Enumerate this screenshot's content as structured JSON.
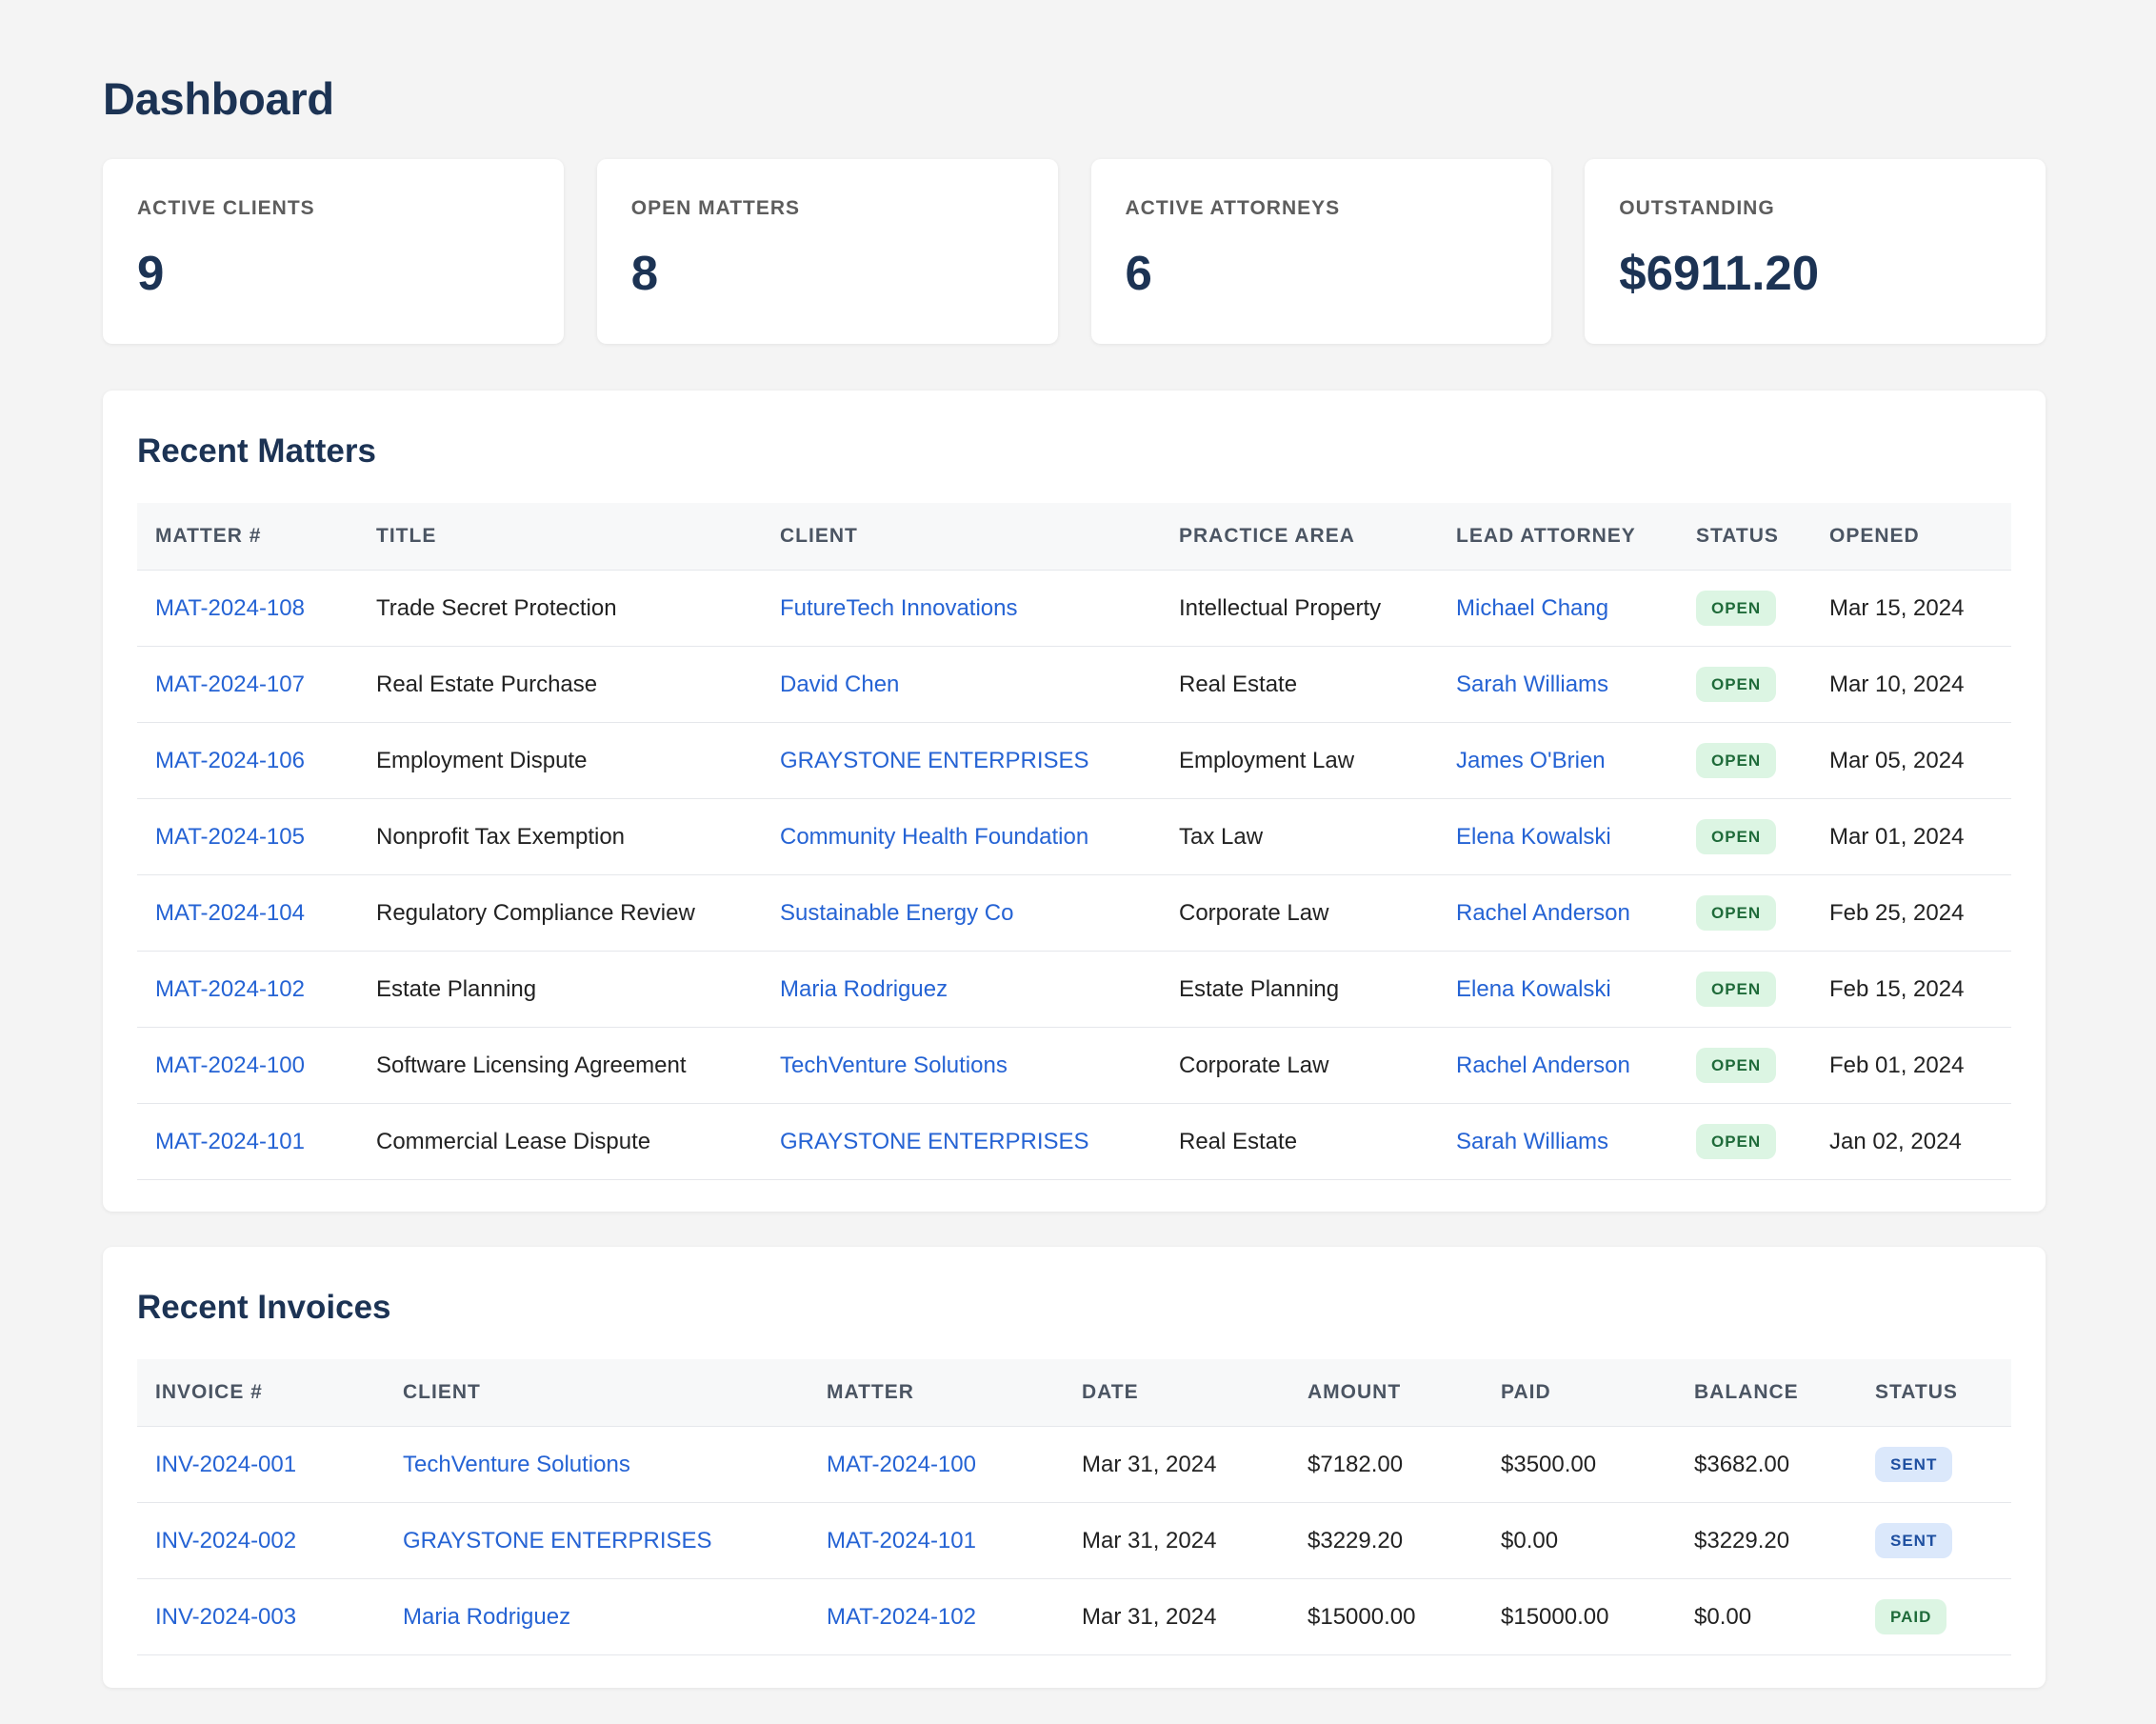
{
  "page": {
    "title": "Dashboard"
  },
  "stats": [
    {
      "label": "ACTIVE CLIENTS",
      "value": "9"
    },
    {
      "label": "OPEN MATTERS",
      "value": "8"
    },
    {
      "label": "ACTIVE ATTORNEYS",
      "value": "6"
    },
    {
      "label": "OUTSTANDING",
      "value": "$6911.20"
    }
  ],
  "matters": {
    "title": "Recent Matters",
    "columns": [
      "MATTER #",
      "TITLE",
      "CLIENT",
      "PRACTICE AREA",
      "LEAD ATTORNEY",
      "STATUS",
      "OPENED"
    ],
    "rows": [
      {
        "matter": "MAT-2024-108",
        "title": "Trade Secret Protection",
        "client": "FutureTech Innovations",
        "area": "Intellectual Property",
        "attorney": "Michael Chang",
        "status": "OPEN",
        "opened": "Mar 15, 2024"
      },
      {
        "matter": "MAT-2024-107",
        "title": "Real Estate Purchase",
        "client": "David Chen",
        "area": "Real Estate",
        "attorney": "Sarah Williams",
        "status": "OPEN",
        "opened": "Mar 10, 2024"
      },
      {
        "matter": "MAT-2024-106",
        "title": "Employment Dispute",
        "client": "GRAYSTONE ENTERPRISES",
        "area": "Employment Law",
        "attorney": "James O'Brien",
        "status": "OPEN",
        "opened": "Mar 05, 2024"
      },
      {
        "matter": "MAT-2024-105",
        "title": "Nonprofit Tax Exemption",
        "client": "Community Health Foundation",
        "area": "Tax Law",
        "attorney": "Elena Kowalski",
        "status": "OPEN",
        "opened": "Mar 01, 2024"
      },
      {
        "matter": "MAT-2024-104",
        "title": "Regulatory Compliance Review",
        "client": "Sustainable Energy Co",
        "area": "Corporate Law",
        "attorney": "Rachel Anderson",
        "status": "OPEN",
        "opened": "Feb 25, 2024"
      },
      {
        "matter": "MAT-2024-102",
        "title": "Estate Planning",
        "client": "Maria Rodriguez",
        "area": "Estate Planning",
        "attorney": "Elena Kowalski",
        "status": "OPEN",
        "opened": "Feb 15, 2024"
      },
      {
        "matter": "MAT-2024-100",
        "title": "Software Licensing Agreement",
        "client": "TechVenture Solutions",
        "area": "Corporate Law",
        "attorney": "Rachel Anderson",
        "status": "OPEN",
        "opened": "Feb 01, 2024"
      },
      {
        "matter": "MAT-2024-101",
        "title": "Commercial Lease Dispute",
        "client": "GRAYSTONE ENTERPRISES",
        "area": "Real Estate",
        "attorney": "Sarah Williams",
        "status": "OPEN",
        "opened": "Jan 02, 2024"
      }
    ]
  },
  "invoices": {
    "title": "Recent Invoices",
    "columns": [
      "INVOICE #",
      "CLIENT",
      "MATTER",
      "DATE",
      "AMOUNT",
      "PAID",
      "BALANCE",
      "STATUS"
    ],
    "rows": [
      {
        "invoice": "INV-2024-001",
        "client": "TechVenture Solutions",
        "matter": "MAT-2024-100",
        "date": "Mar 31, 2024",
        "amount": "$7182.00",
        "paid": "$3500.00",
        "balance": "$3682.00",
        "status": "SENT"
      },
      {
        "invoice": "INV-2024-002",
        "client": "GRAYSTONE ENTERPRISES",
        "matter": "MAT-2024-101",
        "date": "Mar 31, 2024",
        "amount": "$3229.20",
        "paid": "$0.00",
        "balance": "$3229.20",
        "status": "SENT"
      },
      {
        "invoice": "INV-2024-003",
        "client": "Maria Rodriguez",
        "matter": "MAT-2024-102",
        "date": "Mar 31, 2024",
        "amount": "$15000.00",
        "paid": "$15000.00",
        "balance": "$0.00",
        "status": "PAID"
      }
    ]
  },
  "colors": {
    "heading": "#1c3354",
    "link": "#2563d4",
    "open_badge_bg": "#dcf5e3",
    "sent_badge_bg": "#dbe8fb",
    "background": "#f4f4f4"
  }
}
